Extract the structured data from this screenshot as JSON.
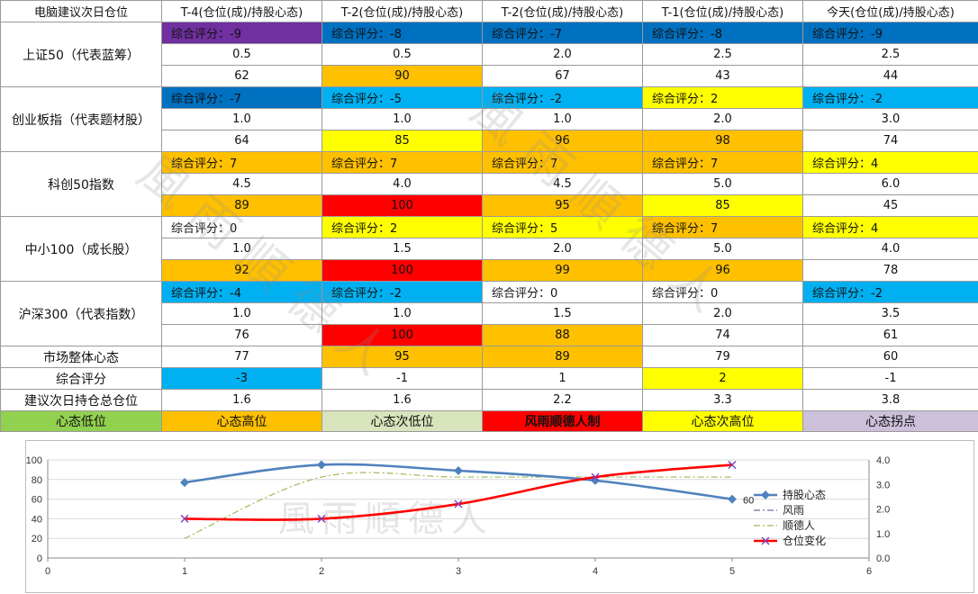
{
  "table": {
    "header": [
      "电脑建议次日仓位",
      "T-4(仓位(成)/持股心态)",
      "T-2(仓位(成)/持股心态)",
      "T-2(仓位(成)/持股心态)",
      "T-1(仓位(成)/持股心态)",
      "今天(仓位(成)/持股心态)"
    ],
    "indices": [
      {
        "name": "上证50（代表蓝筹）",
        "scores": [
          "综合评分：-9",
          "综合评分：-8",
          "综合评分：-7",
          "综合评分：-8",
          "综合评分：-9"
        ],
        "positions": [
          "0.5",
          "0.5",
          "2.0",
          "2.5",
          "2.5"
        ],
        "sentiment": [
          "62",
          "90",
          "67",
          "43",
          "44"
        ],
        "score_colors": [
          "#7030a0",
          "#0070c0",
          "#0070c0",
          "#0070c0",
          "#0070c0"
        ],
        "position_colors": [
          "#ffffff",
          "#ffffff",
          "#ffffff",
          "#ffffff",
          "#ffffff"
        ],
        "sentiment_colors": [
          "#ffffff",
          "#ffc000",
          "#ffffff",
          "#ffffff",
          "#ffffff"
        ]
      },
      {
        "name": "创业板指（代表题材股）",
        "scores": [
          "综合评分：-7",
          "综合评分：-5",
          "综合评分：-2",
          "综合评分：2",
          "综合评分：-2"
        ],
        "positions": [
          "1.0",
          "1.0",
          "1.0",
          "2.0",
          "3.0"
        ],
        "sentiment": [
          "64",
          "85",
          "96",
          "98",
          "74"
        ],
        "score_colors": [
          "#0070c0",
          "#00b0f0",
          "#00b0f0",
          "#ffff00",
          "#00b0f0"
        ],
        "position_colors": [
          "#ffffff",
          "#ffffff",
          "#ffffff",
          "#ffffff",
          "#ffffff"
        ],
        "sentiment_colors": [
          "#ffffff",
          "#ffff00",
          "#ffc000",
          "#ffc000",
          "#ffffff"
        ]
      },
      {
        "name": "科创50指数",
        "scores": [
          "综合评分：7",
          "综合评分：7",
          "综合评分：7",
          "综合评分：7",
          "综合评分：4"
        ],
        "positions": [
          "4.5",
          "4.0",
          "4.5",
          "5.0",
          "6.0"
        ],
        "sentiment": [
          "89",
          "100",
          "95",
          "85",
          "45"
        ],
        "score_colors": [
          "#ffc000",
          "#ffc000",
          "#ffc000",
          "#ffc000",
          "#ffff00"
        ],
        "position_colors": [
          "#ffffff",
          "#ffffff",
          "#ffffff",
          "#ffffff",
          "#ffffff"
        ],
        "sentiment_colors": [
          "#ffc000",
          "#ff0000",
          "#ffc000",
          "#ffff00",
          "#ffffff"
        ]
      },
      {
        "name": "中小100（成长股）",
        "scores": [
          "综合评分：0",
          "综合评分：2",
          "综合评分：5",
          "综合评分：7",
          "综合评分：4"
        ],
        "positions": [
          "1.0",
          "1.5",
          "2.0",
          "5.0",
          "4.0"
        ],
        "sentiment": [
          "92",
          "100",
          "99",
          "96",
          "78"
        ],
        "score_colors": [
          "#ffffff",
          "#ffff00",
          "#ffff00",
          "#ffc000",
          "#ffff00"
        ],
        "position_colors": [
          "#ffffff",
          "#ffffff",
          "#ffffff",
          "#ffffff",
          "#ffffff"
        ],
        "sentiment_colors": [
          "#ffc000",
          "#ff0000",
          "#ffc000",
          "#ffc000",
          "#ffffff"
        ]
      },
      {
        "name": "沪深300（代表指数）",
        "scores": [
          "综合评分：-4",
          "综合评分：-2",
          "综合评分：0",
          "综合评分：0",
          "综合评分：-2"
        ],
        "positions": [
          "1.0",
          "1.0",
          "1.5",
          "2.0",
          "3.5"
        ],
        "sentiment": [
          "76",
          "100",
          "88",
          "74",
          "61"
        ],
        "score_colors": [
          "#00b0f0",
          "#00b0f0",
          "#ffffff",
          "#ffffff",
          "#00b0f0"
        ],
        "position_colors": [
          "#ffffff",
          "#ffffff",
          "#ffffff",
          "#ffffff",
          "#ffffff"
        ],
        "sentiment_colors": [
          "#ffffff",
          "#ff0000",
          "#ffc000",
          "#ffffff",
          "#ffffff"
        ]
      }
    ],
    "summary": [
      {
        "label": "市场整体心态",
        "values": [
          "77",
          "95",
          "89",
          "79",
          "60"
        ],
        "colors": [
          "#ffffff",
          "#ffc000",
          "#ffc000",
          "#ffffff",
          "#ffffff"
        ]
      },
      {
        "label": "综合评分",
        "values": [
          "-3",
          "-1",
          "1",
          "2",
          "-1"
        ],
        "colors": [
          "#00b0f0",
          "#ffffff",
          "#ffffff",
          "#ffff00",
          "#ffffff"
        ]
      },
      {
        "label": "建议次日持仓总仓位",
        "values": [
          "1.6",
          "1.6",
          "2.2",
          "3.3",
          "3.8"
        ],
        "colors": [
          "#ffffff",
          "#ffffff",
          "#ffffff",
          "#ffffff",
          "#ffffff"
        ]
      }
    ],
    "legend": [
      {
        "label": "心态低位",
        "color": "#92d050",
        "bold": false
      },
      {
        "label": "心态高位",
        "color": "#ffc000",
        "bold": false
      },
      {
        "label": "心态次低位",
        "color": "#d8e4bc",
        "bold": false
      },
      {
        "label": "风雨顺德人制",
        "color": "#ff0000",
        "bold": true
      },
      {
        "label": "心态次高位",
        "color": "#ffff00",
        "bold": false
      },
      {
        "label": "心态拐点",
        "color": "#ccc0da",
        "bold": false
      }
    ]
  },
  "watermark": [
    "風雨順德人",
    "風雨順德人",
    "風雨順德人"
  ],
  "chart_data": {
    "type": "line",
    "x": [
      1,
      2,
      3,
      4,
      5
    ],
    "xlim": [
      0,
      6
    ],
    "xticks": [
      "0",
      "1",
      "2",
      "3",
      "4",
      "5",
      "6"
    ],
    "ylim": [
      0,
      100
    ],
    "yticks": [
      "0",
      "20",
      "40",
      "60",
      "80",
      "100"
    ],
    "y2lim": [
      0,
      4
    ],
    "y2ticks": [
      "0.0",
      "1.0",
      "2.0",
      "3.0",
      "4.0"
    ],
    "grid": "horizontal",
    "legend_position": "right",
    "series": [
      {
        "name": "持股心态",
        "axis": "left",
        "values": [
          77,
          95,
          89,
          79,
          60
        ],
        "color": "#4f81bd",
        "style": "solid",
        "marker": "diamond"
      },
      {
        "name": "风雨",
        "axis": "right",
        "values": [
          1.6,
          1.6,
          2.2,
          3.3,
          3.8
        ],
        "color": "#8064a2",
        "style": "dashdot",
        "marker": "none"
      },
      {
        "name": "顺德人",
        "axis": "right",
        "values": [
          0.8,
          3.3,
          3.3,
          3.3,
          3.3
        ],
        "color": "#9bbb59",
        "style": "dashdot",
        "marker": "none"
      },
      {
        "name": "仓位变化",
        "axis": "right",
        "values": [
          1.6,
          1.6,
          2.2,
          3.3,
          3.8
        ],
        "color": "#ff0000",
        "style": "solid",
        "marker": "x"
      }
    ],
    "annotations": [
      {
        "text": "60"
      }
    ]
  }
}
